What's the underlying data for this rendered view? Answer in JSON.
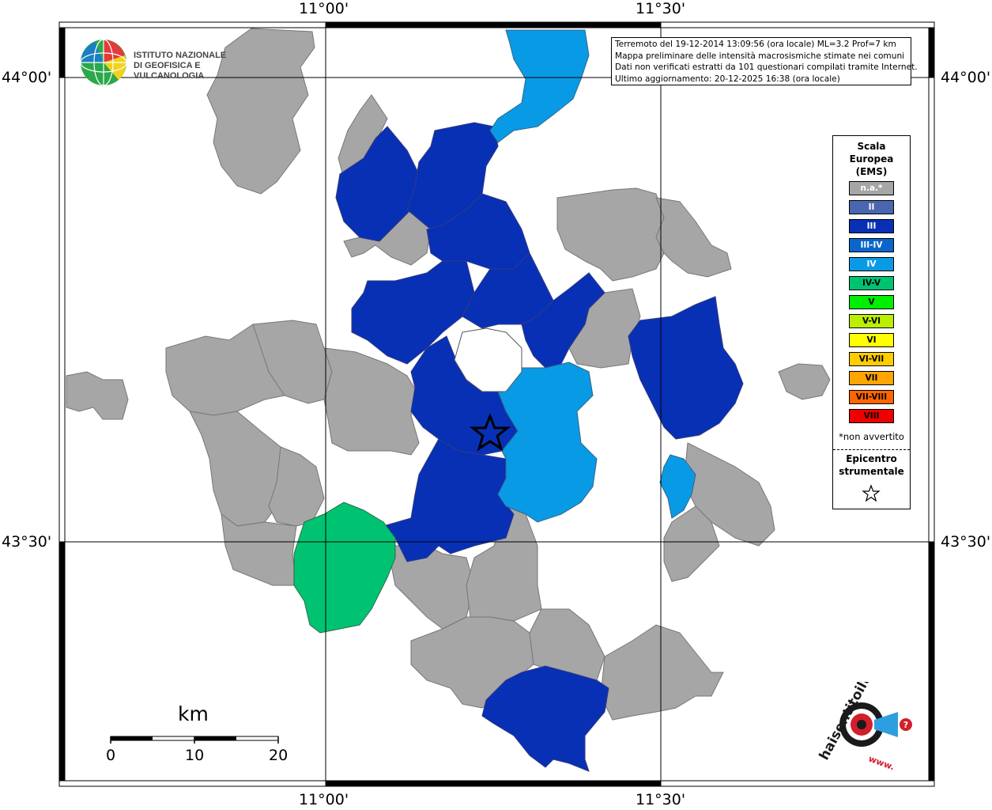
{
  "header": {
    "lines": [
      "Terremoto del 19-12-2014 13:09:56 (ora locale) ML=3.2 Prof=7 km",
      "Mappa preliminare delle intensità macrosismiche stimate nei comuni",
      "Dati non verificati estratti da 101 questionari compilati tramite Internet.",
      "Ultimo aggiornamento: 20-12-2025 16:38 (ora locale)"
    ]
  },
  "institute": {
    "name_line1": "ISTITUTO NAZIONALE",
    "name_line2": "DI GEOFISICA E VULCANOLOGIA"
  },
  "coordinates": {
    "lon_left": "11°00'",
    "lon_right": "11°30'",
    "lat_top": "44°00'",
    "lat_bottom": "43°30'"
  },
  "legend": {
    "title_line1": "Scala",
    "title_line2": "Europea",
    "title_line3": "(EMS)",
    "classes": [
      {
        "label": "n.a.*",
        "color": "#a6a6a6",
        "text_color": "#ffffff"
      },
      {
        "label": "II",
        "color": "#4a66b0",
        "text_color": "#ffffff"
      },
      {
        "label": "III",
        "color": "#0730b5",
        "text_color": "#ffffff"
      },
      {
        "label": "III-IV",
        "color": "#0a66cc",
        "text_color": "#ffffff"
      },
      {
        "label": "IV",
        "color": "#099ae6",
        "text_color": "#ffffff"
      },
      {
        "label": "IV-V",
        "color": "#00c372",
        "text_color": "#000000"
      },
      {
        "label": "V",
        "color": "#00ee00",
        "text_color": "#000000"
      },
      {
        "label": "V-VI",
        "color": "#bbee00",
        "text_color": "#000000"
      },
      {
        "label": "VI",
        "color": "#ffff00",
        "text_color": "#000000"
      },
      {
        "label": "VI-VII",
        "color": "#ffcc00",
        "text_color": "#000000"
      },
      {
        "label": "VII",
        "color": "#ffa500",
        "text_color": "#000000"
      },
      {
        "label": "VII-VIII",
        "color": "#ff6600",
        "text_color": "#000000"
      },
      {
        "label": "VIII",
        "color": "#ee0000",
        "text_color": "#000000"
      }
    ],
    "note": "*non avvertito",
    "epicenter_line1": "Epicentro",
    "epicenter_line2": "strumentale"
  },
  "scale": {
    "unit": "km",
    "ticks": [
      "0",
      "10",
      "20"
    ]
  },
  "brand": {
    "text": "haisentitoilterremoto.it",
    "prefix": "www."
  },
  "colors": {
    "na": "#a6a6a6",
    "iii": "#0730b5",
    "iv": "#099ae6",
    "ivv": "#00c372",
    "border": "#555555"
  }
}
